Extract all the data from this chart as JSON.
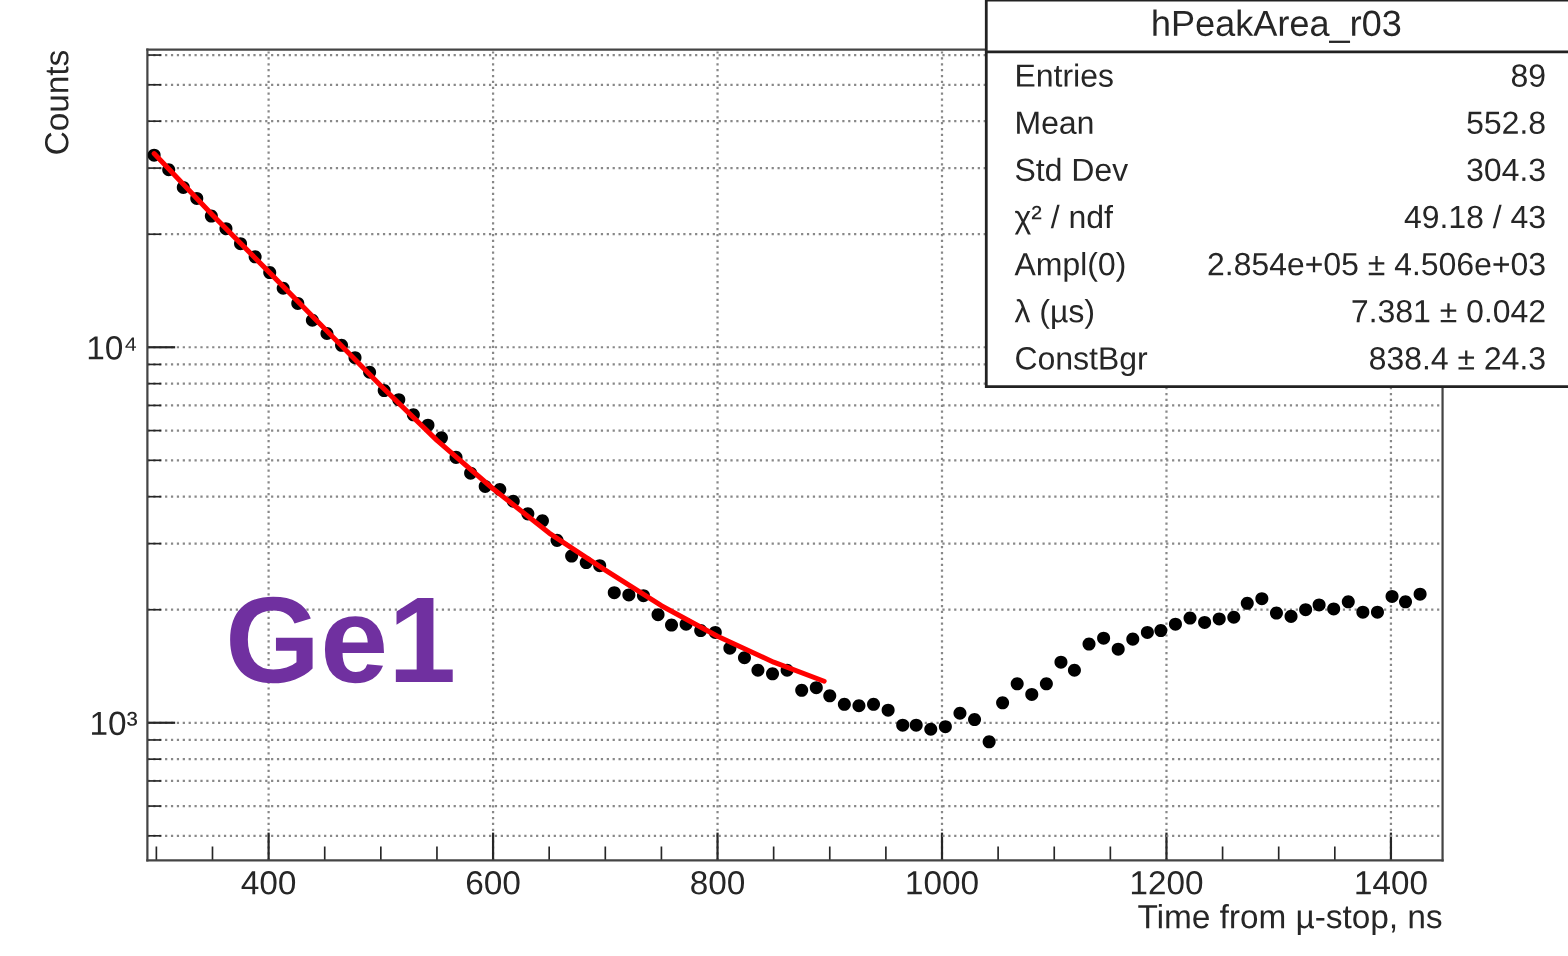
{
  "chart_data": {
    "type": "scatter",
    "xlabel": "Time from µ-stop, ns",
    "ylabel": "Counts",
    "xlim": [
      292,
      1446
    ],
    "xticks": [
      400,
      600,
      800,
      1000,
      1200,
      1400
    ],
    "ylim": [
      430,
      62000
    ],
    "yticks": [
      {
        "value": 1000,
        "label": "10³"
      },
      {
        "value": 10000,
        "label": "10⁴"
      }
    ],
    "log": true,
    "grid": true,
    "legend": false,
    "series": [
      {
        "color": "#000000",
        "marker": "circle",
        "x": [
          298,
          311,
          324,
          336,
          349,
          362,
          375,
          388,
          401,
          413,
          426,
          439,
          452,
          465,
          477,
          490,
          503,
          516,
          529,
          542,
          554,
          567,
          580,
          593,
          606,
          618,
          631,
          644,
          657,
          670,
          683,
          695,
          708,
          721,
          734,
          747,
          759,
          772,
          785,
          798,
          811,
          824,
          836,
          849,
          862,
          875,
          888,
          900,
          913,
          926,
          939,
          952,
          965,
          977,
          990,
          1003,
          1016,
          1029,
          1042,
          1054,
          1067,
          1080,
          1093,
          1106,
          1118,
          1131,
          1144,
          1157,
          1170,
          1183,
          1195,
          1208,
          1221,
          1234,
          1247,
          1260,
          1272,
          1285,
          1298,
          1311,
          1324,
          1336,
          1349,
          1362,
          1375,
          1388,
          1401,
          1413,
          1426
        ],
        "values": [
          32470,
          29700,
          26650,
          24910,
          22350,
          20690,
          18870,
          17410,
          15810,
          14360,
          13080,
          11800,
          10880,
          10120,
          9380,
          8580,
          7670,
          7250,
          6610,
          6200,
          5740,
          5090,
          4620,
          4260,
          4180,
          3890,
          3600,
          3450,
          3060,
          2780,
          2670,
          2620,
          2220,
          2190,
          2180,
          1940,
          1820,
          1830,
          1760,
          1740,
          1580,
          1490,
          1380,
          1350,
          1380,
          1220,
          1240,
          1180,
          1120,
          1110,
          1120,
          1080,
          985,
          985,
          961,
          976,
          1060,
          1020,
          890,
          1130,
          1270,
          1190,
          1270,
          1450,
          1380,
          1620,
          1680,
          1570,
          1670,
          1740,
          1760,
          1830,
          1900,
          1850,
          1890,
          1910,
          2080,
          2140,
          1960,
          1920,
          2000,
          2060,
          2010,
          2100,
          1970,
          1970,
          2170,
          2100,
          2200
        ]
      },
      {
        "type": "line",
        "color": "#ff0000",
        "marker": "none",
        "line_style": "solid",
        "x": [
          298,
          350,
          400,
          450,
          500,
          550,
          600,
          650,
          700,
          750,
          800,
          850,
          895
        ],
        "values": [
          32800,
          22500,
          15900,
          11200,
          7900,
          5650,
          4200,
          3200,
          2550,
          2050,
          1700,
          1450,
          1290
        ]
      }
    ],
    "annotations": [
      "Ge1",
      "hPeakArea_r03",
      "Entries",
      "89",
      "Mean",
      "552.8",
      "Std Dev",
      "304.3",
      "χ² / ndf",
      "49.18 / 43",
      "Ampl(0)",
      "2.854e+05 ± 4.506e+03",
      "λ (µs)",
      "7.381 ± 0.042",
      "ConstBgr",
      "838.4 ± 24.3"
    ]
  }
}
